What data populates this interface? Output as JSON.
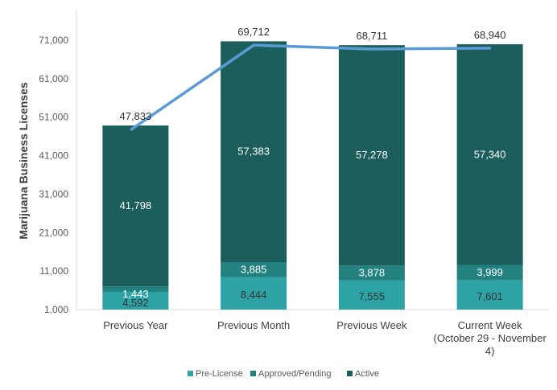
{
  "chart_data": {
    "type": "bar",
    "stacked": true,
    "ylabel": "Marijuana Business Licenses",
    "ylim": [
      1000,
      75000
    ],
    "yticks": [
      "1,000",
      "11,000",
      "21,000",
      "31,000",
      "41,000",
      "51,000",
      "61,000",
      "71,000"
    ],
    "ytick_values": [
      1000,
      11000,
      21000,
      31000,
      41000,
      51000,
      61000,
      71000
    ],
    "grid": false,
    "legend_position": "bottom",
    "categories": [
      [
        "Previous Year"
      ],
      [
        "Previous Month"
      ],
      [
        "Previous Week"
      ],
      [
        "Current Week",
        "(October 29 - November",
        "4)"
      ]
    ],
    "series": [
      {
        "name": "Pre-License",
        "color": "#2ea3a6",
        "label_color": "#333333",
        "values": [
          4592,
          8444,
          7555,
          7601
        ],
        "labels": [
          "4,592",
          "8,444",
          "7,555",
          "7,601"
        ]
      },
      {
        "name": "Approved/Pending",
        "color": "#23817f",
        "label_color": "#ffffff",
        "values": [
          1443,
          3885,
          3878,
          3999
        ],
        "labels": [
          "1,443",
          "3,885",
          "3,878",
          "3,999"
        ]
      },
      {
        "name": "Active",
        "color": "#1b5e5b",
        "label_color": "#ffffff",
        "values": [
          41798,
          57383,
          57278,
          57340
        ],
        "labels": [
          "41,798",
          "57,383",
          "57,278",
          "57,340"
        ]
      }
    ],
    "total_line": {
      "color": "#5b9bd5",
      "values": [
        47833,
        69712,
        68711,
        68940
      ],
      "labels": [
        "47,833",
        "69,712",
        "68,711",
        "68,940"
      ]
    }
  }
}
